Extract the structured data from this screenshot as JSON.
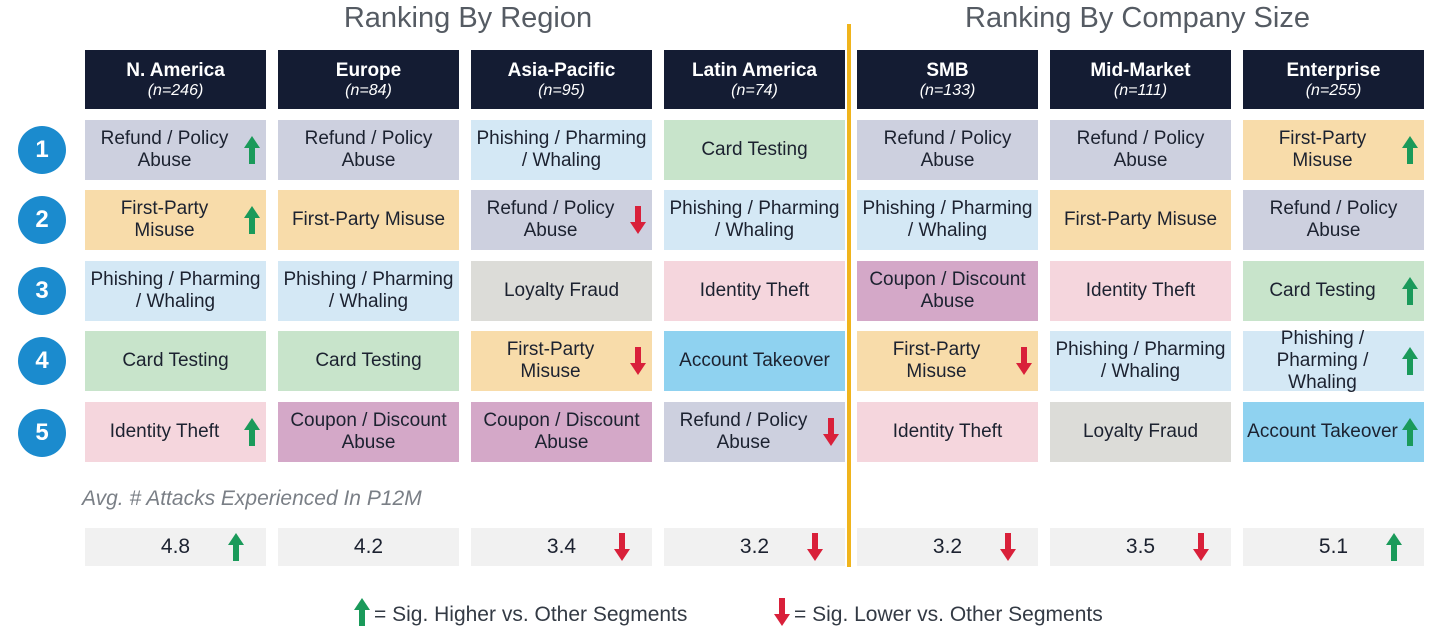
{
  "titles": {
    "region": "Ranking By Region",
    "size": "Ranking By Company Size"
  },
  "colors": {
    "header_bg": "#141c33",
    "rank_circle": "#1b8bce",
    "divider": "#f0b41c",
    "up_arrow": "#1a9a5a",
    "down_arrow": "#d9203a",
    "categories": {
      "Refund / Policy Abuse": "#cdd0df",
      "First-Party Misuse": "#f8dcaa",
      "Phishing / Pharming / Whaling": "#d4e8f5",
      "Card Testing": "#c8e4cb",
      "Identity Theft": "#f5d6dd",
      "Coupon / Discount Abuse": "#d4a8c8",
      "Loyalty Fraud": "#dcdcd8",
      "Account Takeover": "#8fd2f0"
    }
  },
  "ranks": [
    "1",
    "2",
    "3",
    "4",
    "5"
  ],
  "avg_label": "Avg. # Attacks Experienced In P12M",
  "legend": {
    "up": "= Sig. Higher vs. Other Segments",
    "down": "= Sig. Lower vs. Other Segments"
  },
  "chart_data": {
    "type": "table",
    "groups": [
      {
        "title": "Ranking By Region",
        "segments": [
          "N. America",
          "Europe",
          "Asia-Pacific",
          "Latin America"
        ]
      },
      {
        "title": "Ranking By Company Size",
        "segments": [
          "SMB",
          "Mid-Market",
          "Enterprise"
        ]
      }
    ],
    "segments": [
      {
        "name": "N. America",
        "n": "(n=246)",
        "ranks": [
          {
            "label": "Refund / Policy Abuse",
            "sig": "up"
          },
          {
            "label": "First-Party Misuse",
            "sig": "up"
          },
          {
            "label": "Phishing / Pharming / Whaling",
            "sig": ""
          },
          {
            "label": "Card Testing",
            "sig": ""
          },
          {
            "label": "Identity Theft",
            "sig": "up"
          }
        ],
        "avg_attacks": "4.8",
        "avg_sig": "up"
      },
      {
        "name": "Europe",
        "n": "(n=84)",
        "ranks": [
          {
            "label": "Refund / Policy Abuse",
            "sig": ""
          },
          {
            "label": "First-Party Misuse",
            "sig": ""
          },
          {
            "label": "Phishing / Pharming / Whaling",
            "sig": ""
          },
          {
            "label": "Card Testing",
            "sig": ""
          },
          {
            "label": "Coupon / Discount Abuse",
            "sig": ""
          }
        ],
        "avg_attacks": "4.2",
        "avg_sig": ""
      },
      {
        "name": "Asia-Pacific",
        "n": "(n=95)",
        "ranks": [
          {
            "label": "Phishing / Pharming / Whaling",
            "sig": ""
          },
          {
            "label": "Refund / Policy Abuse",
            "sig": "down"
          },
          {
            "label": "Loyalty Fraud",
            "sig": ""
          },
          {
            "label": "First-Party Misuse",
            "sig": "down"
          },
          {
            "label": "Coupon / Discount Abuse",
            "sig": ""
          }
        ],
        "avg_attacks": "3.4",
        "avg_sig": "down"
      },
      {
        "name": "Latin America",
        "n": "(n=74)",
        "ranks": [
          {
            "label": "Card Testing",
            "sig": ""
          },
          {
            "label": "Phishing / Pharming / Whaling",
            "sig": ""
          },
          {
            "label": "Identity Theft",
            "sig": ""
          },
          {
            "label": "Account Takeover",
            "sig": ""
          },
          {
            "label": "Refund / Policy Abuse",
            "sig": "down"
          }
        ],
        "avg_attacks": "3.2",
        "avg_sig": "down"
      },
      {
        "name": "SMB",
        "n": "(n=133)",
        "ranks": [
          {
            "label": "Refund / Policy Abuse",
            "sig": ""
          },
          {
            "label": "Phishing / Pharming / Whaling",
            "sig": ""
          },
          {
            "label": "Coupon / Discount Abuse",
            "sig": ""
          },
          {
            "label": "First-Party Misuse",
            "sig": "down"
          },
          {
            "label": "Identity Theft",
            "sig": ""
          }
        ],
        "avg_attacks": "3.2",
        "avg_sig": "down"
      },
      {
        "name": "Mid-Market",
        "n": "(n=111)",
        "ranks": [
          {
            "label": "Refund / Policy Abuse",
            "sig": ""
          },
          {
            "label": "First-Party Misuse",
            "sig": ""
          },
          {
            "label": "Identity Theft",
            "sig": ""
          },
          {
            "label": "Phishing / Pharming / Whaling",
            "sig": ""
          },
          {
            "label": "Loyalty Fraud",
            "sig": ""
          }
        ],
        "avg_attacks": "3.5",
        "avg_sig": "down"
      },
      {
        "name": "Enterprise",
        "n": "(n=255)",
        "ranks": [
          {
            "label": "First-Party Misuse",
            "sig": "up"
          },
          {
            "label": "Refund / Policy Abuse",
            "sig": ""
          },
          {
            "label": "Card Testing",
            "sig": "up"
          },
          {
            "label": "Phishing / Pharming / Whaling",
            "sig": "up"
          },
          {
            "label": "Account Takeover",
            "sig": "up"
          }
        ],
        "avg_attacks": "5.1",
        "avg_sig": "up"
      }
    ]
  }
}
